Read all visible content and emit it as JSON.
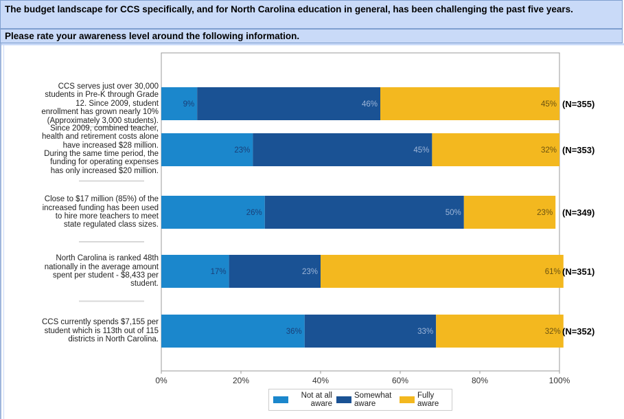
{
  "header": {
    "title": "The budget landscape for CCS specifically, and for North Carolina education in general, has been challenging the past five years.",
    "question": "Please rate your awareness level around the following information."
  },
  "chart_data": {
    "type": "bar",
    "orientation": "horizontal",
    "stacked": true,
    "categories": [
      "CCS serves just over 30,000 students in Pre-K through Grade 12. Since 2009, student enrollment has grown nearly 10% (Approximately 3,000 students).",
      "Since 2009, combined teacher, health and retirement costs alone have increased $28 million. During the same time period, the funding for operating expenses has only increased $20 million.",
      "Close to $17 million (85%) of the increased funding has been used to hire more teachers to meet state regulated class sizes.",
      "North Carolina is ranked 48th nationally in the average amount spent per student - $8,433 per student.",
      "CCS currently spends $7,155 per student which is 113th out of 115 districts in North Carolina."
    ],
    "category_lines": [
      [
        "CCS serves just over 30,000",
        "students in Pre-K through Grade",
        "12.  Since 2009, student",
        "enrollment has grown nearly 10%",
        "(Approximately 3,000 students)."
      ],
      [
        "Since 2009, combined teacher,",
        "health and retirement costs alone",
        "have increased $28 million.",
        "During the same time period, the",
        "funding for operating expenses",
        "has only increased $20 million."
      ],
      [
        "Close to $17 million (85%) of the",
        "increased funding has been used",
        "to hire more teachers to meet",
        "state regulated class sizes."
      ],
      [
        "North Carolina is ranked 48th",
        "nationally in the average amount",
        "spent per student - $8,433 per",
        "student."
      ],
      [
        "CCS currently spends $7,155 per",
        "student which is 113th out of 115",
        "districts in North Carolina."
      ]
    ],
    "series": [
      {
        "name": "Not at all aware",
        "values": [
          9,
          23,
          26,
          17,
          36
        ],
        "labels": [
          "9%",
          "23%",
          "26%",
          "17%",
          "36%"
        ],
        "color": "#1b87cc",
        "label_color": "#1a3f78"
      },
      {
        "name": "Somewhat aware",
        "values": [
          46,
          45,
          50,
          23,
          33
        ],
        "labels": [
          "46%",
          "45%",
          "50%",
          "23%",
          "33%"
        ],
        "color": "#1a5294",
        "label_color": "#9db5d8"
      },
      {
        "name": "Fully aware",
        "values": [
          45,
          32,
          23,
          61,
          32
        ],
        "labels": [
          "45%",
          "32%",
          "23%",
          "61%",
          "32%"
        ],
        "color": "#f3b81f",
        "label_color": "#6b5210"
      }
    ],
    "n_labels": [
      "(N=355)",
      "(N=353)",
      "(N=349)",
      "(N=351)",
      "(N=352)"
    ],
    "x_ticks": [
      "0%",
      "20%",
      "40%",
      "60%",
      "80%",
      "100%"
    ],
    "xlim": [
      0,
      100
    ],
    "legend_position": "bottom-center",
    "legend_lines": [
      [
        "Not at all",
        "aware"
      ],
      [
        "Somewhat",
        "aware"
      ],
      [
        "Fully",
        "aware"
      ]
    ],
    "grid": false
  }
}
